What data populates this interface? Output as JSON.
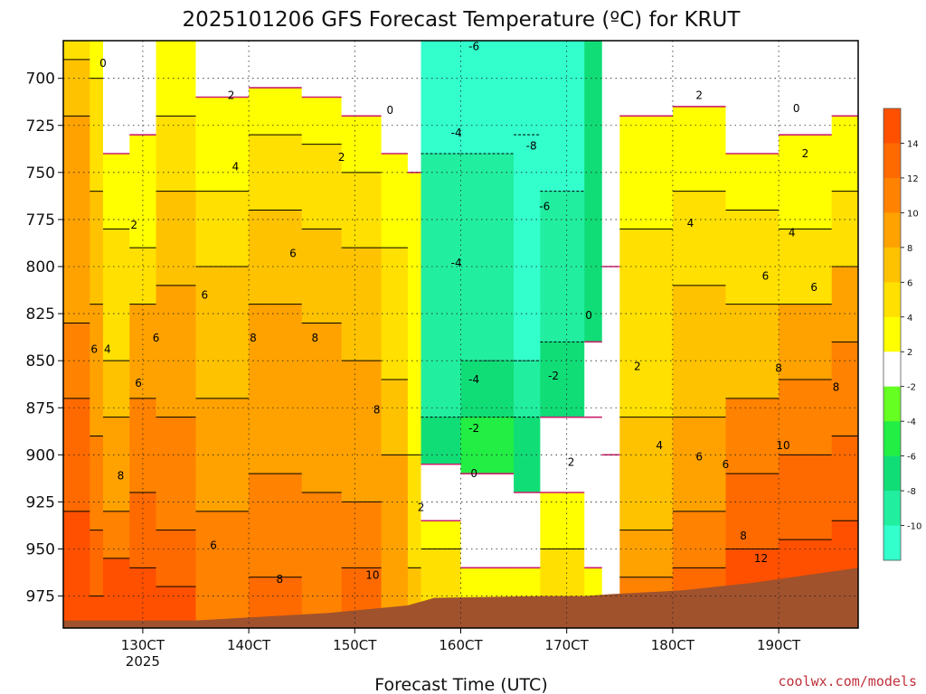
{
  "chart_data": {
    "type": "contour",
    "title": "2025101206 GFS Forecast Temperature (ºC) for KRUT",
    "xlabel": "Forecast Time (UTC)",
    "ylabel": "",
    "credit": "coolwx.com/models",
    "y_axis": {
      "ticks": [
        700,
        725,
        750,
        775,
        800,
        825,
        850,
        875,
        900,
        925,
        950,
        975
      ],
      "ylim": [
        680,
        992
      ],
      "inverted": true
    },
    "x_axis": {
      "ticks": [
        {
          "label": "130CT",
          "sublabel": "2025",
          "hours": 18
        },
        {
          "label": "140CT",
          "sublabel": "",
          "hours": 42
        },
        {
          "label": "150CT",
          "sublabel": "",
          "hours": 66
        },
        {
          "label": "160CT",
          "sublabel": "",
          "hours": 90
        },
        {
          "label": "170CT",
          "sublabel": "",
          "hours": 114
        },
        {
          "label": "180CT",
          "sublabel": "",
          "hours": 138
        },
        {
          "label": "190CT",
          "sublabel": "",
          "hours": 162
        }
      ],
      "xlim_hours": [
        0,
        180
      ]
    },
    "colorbar": {
      "levels": [
        -10,
        -8,
        -6,
        -4,
        -2,
        2,
        4,
        6,
        8,
        10,
        12,
        14
      ],
      "colors": [
        "#33ffcc",
        "#22eea0",
        "#11dd77",
        "#22ee44",
        "#66ff22",
        "#ffffff",
        "#ffff00",
        "#ffe000",
        "#ffc200",
        "#ffa200",
        "#ff8200",
        "#ff6a00",
        "#ff5000"
      ]
    },
    "columns": [
      {
        "h": 0,
        "levels": [
          [
            680,
            2
          ],
          [
            690,
            3
          ],
          [
            720,
            4
          ],
          [
            830,
            5
          ],
          [
            870,
            6
          ],
          [
            930,
            10
          ]
        ]
      },
      {
        "h": 6,
        "levels": [
          [
            680,
            1
          ],
          [
            700,
            2
          ],
          [
            760,
            3
          ],
          [
            820,
            4
          ],
          [
            890,
            5
          ],
          [
            940,
            6
          ],
          [
            975,
            11
          ]
        ]
      },
      {
        "h": 9,
        "levels": [
          [
            680,
            0
          ],
          [
            740,
            1
          ],
          [
            780,
            2
          ],
          [
            850,
            3
          ],
          [
            880,
            4
          ],
          [
            930,
            5
          ],
          [
            955,
            7
          ]
        ]
      },
      {
        "h": 15,
        "levels": [
          [
            680,
            0
          ],
          [
            730,
            1
          ],
          [
            790,
            2
          ],
          [
            820,
            4
          ],
          [
            870,
            5
          ],
          [
            920,
            6
          ],
          [
            960,
            7
          ]
        ]
      },
      {
        "h": 21,
        "levels": [
          [
            680,
            1
          ],
          [
            720,
            2
          ],
          [
            760,
            3
          ],
          [
            810,
            4
          ],
          [
            880,
            5
          ],
          [
            940,
            6
          ],
          [
            970,
            7
          ]
        ]
      },
      {
        "h": 30,
        "levels": [
          [
            680,
            0
          ],
          [
            710,
            1
          ],
          [
            760,
            2
          ],
          [
            800,
            3
          ],
          [
            870,
            4
          ],
          [
            930,
            5
          ]
        ]
      },
      {
        "h": 42,
        "levels": [
          [
            680,
            0
          ],
          [
            705,
            1
          ],
          [
            730,
            2
          ],
          [
            770,
            3
          ],
          [
            820,
            4
          ],
          [
            910,
            5
          ],
          [
            965,
            6
          ]
        ]
      },
      {
        "h": 54,
        "levels": [
          [
            680,
            0
          ],
          [
            710,
            1
          ],
          [
            735,
            2
          ],
          [
            780,
            3
          ],
          [
            830,
            4
          ],
          [
            920,
            5
          ]
        ]
      },
      {
        "h": 63,
        "levels": [
          [
            680,
            0
          ],
          [
            720,
            1
          ],
          [
            750,
            2
          ],
          [
            790,
            3
          ],
          [
            850,
            4
          ],
          [
            925,
            5
          ],
          [
            960,
            6
          ]
        ]
      },
      {
        "h": 72,
        "levels": [
          [
            680,
            0
          ],
          [
            740,
            1
          ],
          [
            790,
            2
          ],
          [
            860,
            3
          ],
          [
            900,
            4
          ]
        ]
      },
      {
        "h": 78,
        "levels": [
          [
            680,
            0
          ],
          [
            750,
            1
          ],
          [
            900,
            2
          ],
          [
            960,
            3
          ]
        ]
      },
      {
        "h": 81,
        "levels": [
          [
            680,
            -5
          ],
          [
            740,
            -4
          ],
          [
            880,
            -3
          ],
          [
            905,
            0
          ],
          [
            935,
            1
          ],
          [
            950,
            2
          ]
        ]
      },
      {
        "h": 90,
        "levels": [
          [
            680,
            -5
          ],
          [
            740,
            -4
          ],
          [
            850,
            -3
          ],
          [
            880,
            -2
          ],
          [
            910,
            0
          ],
          [
            960,
            1
          ]
        ]
      },
      {
        "h": 102,
        "levels": [
          [
            680,
            -6
          ],
          [
            730,
            -5
          ],
          [
            850,
            -4
          ],
          [
            880,
            -3
          ],
          [
            920,
            0
          ],
          [
            960,
            1
          ]
        ]
      },
      {
        "h": 108,
        "levels": [
          [
            680,
            -5
          ],
          [
            760,
            -4
          ],
          [
            840,
            -3
          ],
          [
            880,
            0
          ],
          [
            920,
            1
          ],
          [
            950,
            2
          ]
        ]
      },
      {
        "h": 118,
        "levels": [
          [
            680,
            -3
          ],
          [
            840,
            0
          ],
          [
            880,
            0
          ],
          [
            960,
            1
          ]
        ]
      },
      {
        "h": 122,
        "levels": [
          [
            680,
            0
          ],
          [
            800,
            0
          ],
          [
            900,
            0
          ],
          [
            980,
            0
          ]
        ]
      },
      {
        "h": 126,
        "levels": [
          [
            680,
            0
          ],
          [
            720,
            1
          ],
          [
            780,
            2
          ],
          [
            880,
            3
          ],
          [
            940,
            4
          ],
          [
            965,
            5
          ]
        ]
      },
      {
        "h": 138,
        "levels": [
          [
            680,
            0
          ],
          [
            715,
            1
          ],
          [
            760,
            2
          ],
          [
            810,
            3
          ],
          [
            880,
            4
          ],
          [
            930,
            5
          ],
          [
            960,
            6
          ]
        ]
      },
      {
        "h": 150,
        "levels": [
          [
            680,
            0
          ],
          [
            740,
            1
          ],
          [
            770,
            2
          ],
          [
            820,
            3
          ],
          [
            870,
            5
          ],
          [
            910,
            6
          ],
          [
            950,
            7
          ]
        ]
      },
      {
        "h": 162,
        "levels": [
          [
            680,
            0
          ],
          [
            730,
            1
          ],
          [
            780,
            2
          ],
          [
            820,
            4
          ],
          [
            860,
            5
          ],
          [
            900,
            6
          ],
          [
            945,
            8
          ]
        ]
      },
      {
        "h": 174,
        "levels": [
          [
            680,
            0
          ],
          [
            720,
            1
          ],
          [
            760,
            2
          ],
          [
            800,
            4
          ],
          [
            840,
            5
          ],
          [
            890,
            6
          ],
          [
            935,
            7
          ]
        ]
      },
      {
        "h": 180,
        "levels": [
          [
            680,
            0
          ],
          [
            700,
            1
          ],
          [
            740,
            2
          ],
          [
            780,
            3
          ],
          [
            820,
            4
          ],
          [
            860,
            5
          ],
          [
            900,
            6
          ]
        ]
      }
    ],
    "terrain": [
      {
        "h": 0,
        "p": 988
      },
      {
        "h": 30,
        "p": 988
      },
      {
        "h": 60,
        "p": 984
      },
      {
        "h": 78,
        "p": 980
      },
      {
        "h": 84,
        "p": 976
      },
      {
        "h": 108,
        "p": 975
      },
      {
        "h": 118,
        "p": 975
      },
      {
        "h": 124,
        "p": 974
      },
      {
        "h": 140,
        "p": 972
      },
      {
        "h": 156,
        "p": 968
      },
      {
        "h": 168,
        "p": 964
      },
      {
        "h": 180,
        "p": 960
      }
    ],
    "annotations": [
      {
        "text": "0",
        "h": 9,
        "p": 692
      },
      {
        "text": "2",
        "h": 38,
        "p": 709
      },
      {
        "text": "0",
        "h": 74,
        "p": 717
      },
      {
        "text": "-6",
        "h": 93,
        "p": 683
      },
      {
        "text": "-4",
        "h": 89,
        "p": 729
      },
      {
        "text": "-8",
        "h": 106,
        "p": 736
      },
      {
        "text": "-6",
        "h": 109,
        "p": 768
      },
      {
        "text": "-4",
        "h": 89,
        "p": 798
      },
      {
        "text": "0",
        "h": 119,
        "p": 826
      },
      {
        "text": "2",
        "h": 63,
        "p": 742
      },
      {
        "text": "4",
        "h": 39,
        "p": 747
      },
      {
        "text": "2",
        "h": 16,
        "p": 778
      },
      {
        "text": "6",
        "h": 52,
        "p": 793
      },
      {
        "text": "6",
        "h": 32,
        "p": 815
      },
      {
        "text": "8",
        "h": 43,
        "p": 838
      },
      {
        "text": "8",
        "h": 57,
        "p": 838
      },
      {
        "text": "6",
        "h": 7,
        "p": 844
      },
      {
        "text": "4",
        "h": 10,
        "p": 844
      },
      {
        "text": "6",
        "h": 21,
        "p": 838
      },
      {
        "text": "6",
        "h": 17,
        "p": 862
      },
      {
        "text": "-2",
        "h": 111,
        "p": 858
      },
      {
        "text": "-4",
        "h": 93,
        "p": 860
      },
      {
        "text": "-2",
        "h": 93,
        "p": 886
      },
      {
        "text": "8",
        "h": 71,
        "p": 876
      },
      {
        "text": "2",
        "h": 130,
        "p": 853
      },
      {
        "text": "8",
        "h": 162,
        "p": 854
      },
      {
        "text": "8",
        "h": 175,
        "p": 864
      },
      {
        "text": "6",
        "h": 159,
        "p": 805
      },
      {
        "text": "6",
        "h": 170,
        "p": 811
      },
      {
        "text": "4",
        "h": 142,
        "p": 777
      },
      {
        "text": "4",
        "h": 165,
        "p": 782
      },
      {
        "text": "2",
        "h": 144,
        "p": 709
      },
      {
        "text": "2",
        "h": 168,
        "p": 740
      },
      {
        "text": "0",
        "h": 166,
        "p": 716
      },
      {
        "text": "8",
        "h": 13,
        "p": 911
      },
      {
        "text": "0",
        "h": 93,
        "p": 910
      },
      {
        "text": "2",
        "h": 115,
        "p": 904
      },
      {
        "text": "4",
        "h": 135,
        "p": 895
      },
      {
        "text": "6",
        "h": 144,
        "p": 901
      },
      {
        "text": "6",
        "h": 150,
        "p": 905
      },
      {
        "text": "10",
        "h": 163,
        "p": 895
      },
      {
        "text": "2",
        "h": 81,
        "p": 928
      },
      {
        "text": "6",
        "h": 34,
        "p": 948
      },
      {
        "text": "8",
        "h": 154,
        "p": 943
      },
      {
        "text": "12",
        "h": 158,
        "p": 955
      },
      {
        "text": "8",
        "h": 49,
        "p": 966
      },
      {
        "text": "10",
        "h": 70,
        "p": 964
      }
    ]
  }
}
